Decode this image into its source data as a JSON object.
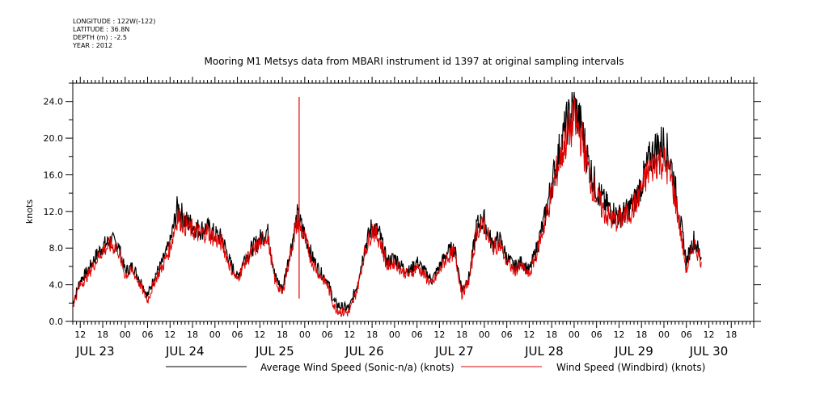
{
  "meta": {
    "longitude": "LONGITUDE : 122W(-122)",
    "latitude": "LATITUDE : 36.8N",
    "depth": "DEPTH (m) : -2.5",
    "year": "YEAR : 2012"
  },
  "chart_data": {
    "type": "line",
    "title": "Mooring M1 Metsys data from MBARI instrument id 1397 at original sampling intervals",
    "ylabel": "knots",
    "xlabel": "",
    "ylim": [
      0,
      26
    ],
    "yticks": [
      "0.0",
      "4.0",
      "8.0",
      "12.0",
      "16.0",
      "20.0",
      "24.0"
    ],
    "ytick_values": [
      0,
      4,
      8,
      12,
      16,
      20,
      24
    ],
    "xlim_hours": [
      0,
      182
    ],
    "hour_ticks": [
      {
        "h": 2,
        "label": "12"
      },
      {
        "h": 8,
        "label": "18"
      },
      {
        "h": 14,
        "label": "00"
      },
      {
        "h": 20,
        "label": "06"
      },
      {
        "h": 26,
        "label": "12"
      },
      {
        "h": 32,
        "label": "18"
      },
      {
        "h": 38,
        "label": "00"
      },
      {
        "h": 44,
        "label": "06"
      },
      {
        "h": 50,
        "label": "12"
      },
      {
        "h": 56,
        "label": "18"
      },
      {
        "h": 62,
        "label": "00"
      },
      {
        "h": 68,
        "label": "06"
      },
      {
        "h": 74,
        "label": "12"
      },
      {
        "h": 80,
        "label": "18"
      },
      {
        "h": 86,
        "label": "00"
      },
      {
        "h": 92,
        "label": "06"
      },
      {
        "h": 98,
        "label": "12"
      },
      {
        "h": 104,
        "label": "18"
      },
      {
        "h": 110,
        "label": "00"
      },
      {
        "h": 116,
        "label": "06"
      },
      {
        "h": 122,
        "label": "12"
      },
      {
        "h": 128,
        "label": "18"
      },
      {
        "h": 134,
        "label": "00"
      },
      {
        "h": 140,
        "label": "06"
      },
      {
        "h": 146,
        "label": "12"
      },
      {
        "h": 152,
        "label": "18"
      },
      {
        "h": 158,
        "label": "00"
      },
      {
        "h": 164,
        "label": "06"
      },
      {
        "h": 170,
        "label": "12"
      },
      {
        "h": 176,
        "label": "18"
      }
    ],
    "date_labels": [
      {
        "h": 6,
        "label": "JUL 23"
      },
      {
        "h": 30,
        "label": "JUL 24"
      },
      {
        "h": 54,
        "label": "JUL 25"
      },
      {
        "h": 78,
        "label": "JUL 26"
      },
      {
        "h": 102,
        "label": "JUL 27"
      },
      {
        "h": 126,
        "label": "JUL 28"
      },
      {
        "h": 150,
        "label": "JUL 29"
      },
      {
        "h": 170,
        "label": "JUL 30"
      }
    ],
    "series": [
      {
        "name": "Average Wind Speed (Sonic-n/a) (knots)",
        "color": "#000000",
        "x_hours": [
          0,
          2,
          4,
          6,
          8,
          10,
          12,
          14,
          16,
          18,
          20,
          22,
          24,
          26,
          28,
          30,
          32,
          34,
          36,
          38,
          40,
          42,
          44,
          46,
          48,
          50,
          52,
          54,
          56,
          58,
          60,
          62,
          64,
          66,
          68,
          70,
          72,
          74,
          76,
          78,
          80,
          82,
          84,
          86,
          88,
          90,
          92,
          94,
          96,
          98,
          100,
          102,
          104,
          106,
          108,
          110,
          112,
          114,
          116,
          118,
          120,
          122,
          124,
          126,
          128,
          130,
          132,
          134,
          136,
          138,
          140,
          142,
          144,
          146,
          148,
          150,
          152,
          154,
          156,
          158,
          160,
          162,
          164,
          166,
          168
        ],
        "values": [
          2.0,
          4.5,
          5.5,
          7.0,
          8.2,
          8.8,
          8.5,
          5.5,
          6.0,
          4.5,
          2.8,
          5.0,
          6.5,
          8.5,
          12.5,
          11.0,
          10.5,
          10.0,
          10.2,
          9.5,
          9.0,
          6.5,
          4.8,
          7.0,
          8.0,
          9.0,
          10.0,
          5.0,
          3.5,
          7.5,
          11.5,
          9.5,
          7.0,
          5.5,
          4.5,
          2.0,
          1.5,
          1.5,
          4.0,
          8.0,
          10.5,
          9.5,
          6.5,
          7.0,
          6.0,
          5.5,
          6.5,
          5.5,
          4.5,
          6.0,
          7.5,
          8.0,
          3.5,
          5.0,
          10.5,
          11.0,
          8.5,
          9.0,
          7.0,
          6.0,
          6.5,
          5.5,
          8.0,
          11.0,
          15.0,
          18.5,
          21.5,
          23.5,
          21.0,
          17.0,
          14.5,
          13.0,
          12.0,
          11.5,
          12.0,
          13.0,
          15.0,
          17.5,
          19.0,
          19.5,
          17.0,
          12.0,
          6.5,
          9.0,
          7.0
        ],
        "width": 1.2
      },
      {
        "name": "Wind Speed (Windbird) (knots)",
        "color": "#e00000",
        "x_hours": [
          0,
          2,
          4,
          6,
          8,
          10,
          12,
          14,
          16,
          18,
          20,
          22,
          24,
          26,
          28,
          30,
          32,
          34,
          36,
          38,
          40,
          42,
          44,
          46,
          48,
          50,
          52,
          54,
          56,
          58,
          60,
          62,
          64,
          66,
          68,
          70,
          72,
          74,
          76,
          78,
          80,
          82,
          84,
          86,
          88,
          90,
          92,
          94,
          96,
          98,
          100,
          102,
          104,
          106,
          108,
          110,
          112,
          114,
          116,
          118,
          120,
          122,
          124,
          126,
          128,
          130,
          132,
          134,
          136,
          138,
          140,
          142,
          144,
          146,
          148,
          150,
          152,
          154,
          156,
          158,
          160,
          162,
          164,
          166,
          168
        ],
        "values": [
          1.8,
          4.0,
          5.0,
          6.5,
          7.8,
          8.3,
          8.0,
          5.0,
          5.5,
          4.0,
          2.3,
          4.5,
          6.0,
          8.0,
          11.5,
          10.5,
          10.0,
          9.5,
          9.8,
          9.0,
          8.5,
          6.0,
          4.5,
          6.5,
          7.5,
          8.5,
          9.5,
          4.5,
          3.0,
          7.0,
          11.0,
          9.0,
          6.5,
          5.0,
          4.0,
          1.5,
          1.0,
          1.0,
          3.5,
          7.5,
          10.0,
          9.0,
          6.0,
          6.5,
          5.5,
          5.0,
          6.0,
          5.0,
          4.0,
          5.5,
          7.0,
          7.5,
          3.0,
          4.5,
          10.0,
          10.5,
          8.0,
          8.5,
          6.5,
          5.5,
          6.0,
          5.0,
          7.5,
          10.5,
          14.0,
          17.5,
          20.0,
          22.0,
          20.0,
          16.0,
          13.5,
          12.0,
          11.0,
          11.0,
          11.5,
          12.5,
          14.5,
          16.5,
          17.5,
          17.5,
          15.5,
          11.0,
          5.5,
          8.5,
          6.5
        ],
        "spike": {
          "h": 60.5,
          "value": 24.5
        },
        "width": 1.0
      }
    ],
    "legend_position": "bottom"
  }
}
